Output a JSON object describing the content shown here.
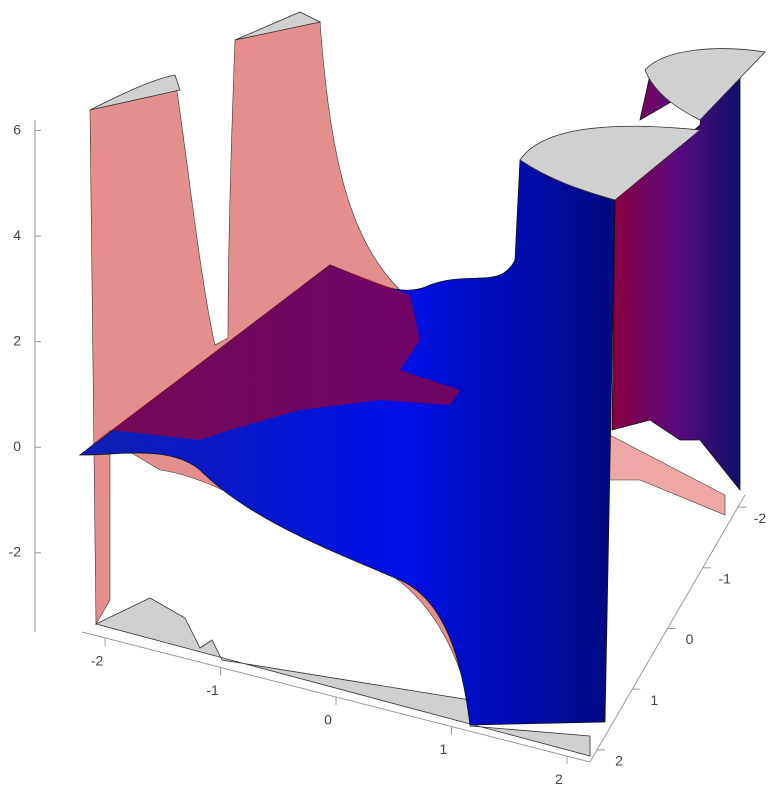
{
  "chart_data": {
    "type": "surface3d",
    "zlim": [
      -3.5,
      6.2
    ],
    "zticks": [
      -2,
      0,
      2,
      4,
      6
    ],
    "xlim": [
      -2.2,
      2.2
    ],
    "xticks": [
      -2,
      -1,
      0,
      1,
      2
    ],
    "ylim": [
      2.2,
      -2.2
    ],
    "yticks": [
      2,
      1,
      0,
      -1,
      -2
    ]
  }
}
